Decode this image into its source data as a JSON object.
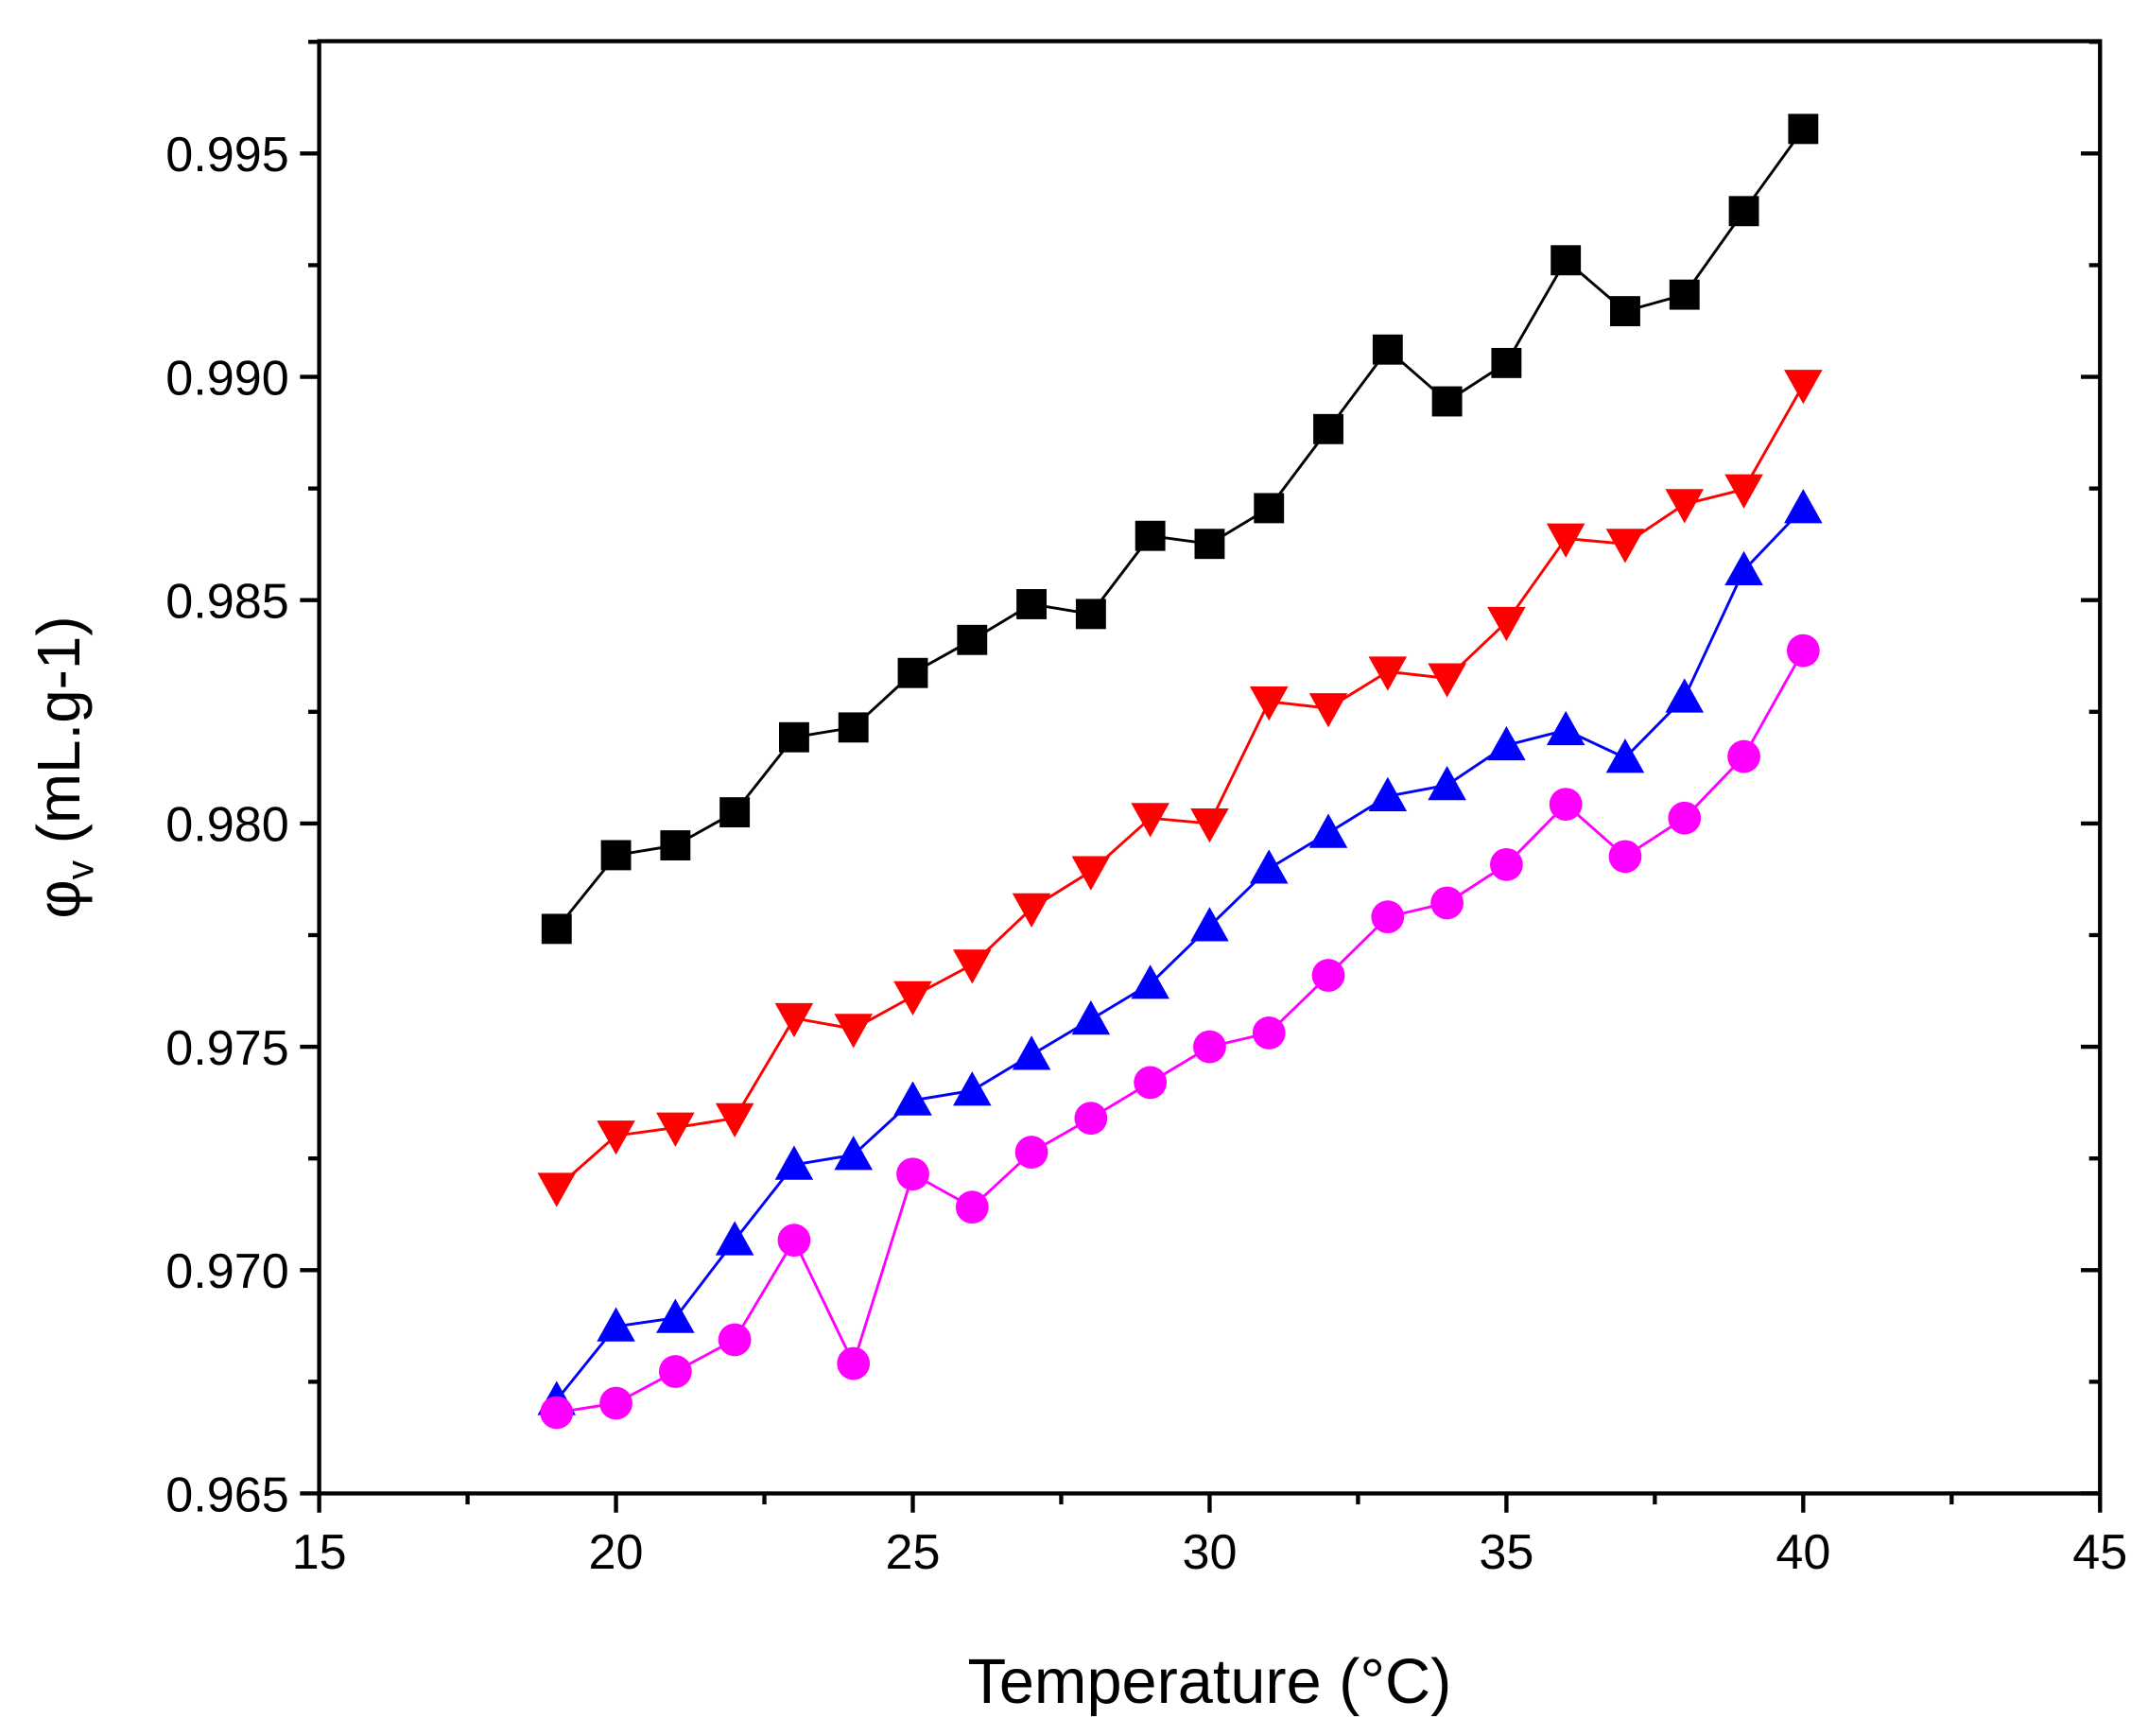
{
  "chart_data": {
    "type": "line",
    "title": "",
    "xlabel": "Temperature (°C)",
    "ylabel_main": "φ",
    "ylabel_sub": "v",
    "ylabel_unit": " (mL.g-1)",
    "xlim": [
      15,
      45
    ],
    "ylim": [
      0.965,
      0.997
    ],
    "xticks": [
      "15",
      "20",
      "25",
      "30",
      "35",
      "40",
      "45"
    ],
    "yticks": [
      "0.965",
      "0.970",
      "0.975",
      "0.980",
      "0.985",
      "0.990",
      "0.995"
    ],
    "grid": false,
    "legend": "none",
    "x": [
      19,
      20,
      21,
      22,
      23,
      24,
      25,
      26,
      27,
      28,
      29,
      30,
      31,
      32,
      33,
      34,
      35,
      36,
      37,
      38,
      39,
      40
    ],
    "series": [
      {
        "name": "series-black-squares",
        "color": "#000000",
        "marker": "square",
        "values": [
          0.97764,
          0.97929,
          0.97951,
          0.98025,
          0.98193,
          0.98215,
          0.98337,
          0.98411,
          0.98491,
          0.98469,
          0.98644,
          0.98626,
          0.98706,
          0.98883,
          0.99061,
          0.98945,
          0.99031,
          0.99261,
          0.99147,
          0.99184,
          0.99371,
          0.99555
        ]
      },
      {
        "name": "series-red-down-triangles",
        "color": "#ff0000",
        "marker": "triangle-down",
        "values": [
          0.97184,
          0.97301,
          0.97319,
          0.9734,
          0.97564,
          0.9754,
          0.97613,
          0.97684,
          0.9781,
          0.97893,
          0.98012,
          0.98,
          0.98273,
          0.98258,
          0.9834,
          0.98325,
          0.98451,
          0.98638,
          0.98626,
          0.98715,
          0.98748,
          0.98982
        ]
      },
      {
        "name": "series-blue-up-triangles",
        "color": "#0000ff",
        "marker": "triangle-up",
        "values": [
          0.96709,
          0.96874,
          0.96893,
          0.97067,
          0.97236,
          0.97258,
          0.9738,
          0.97402,
          0.97482,
          0.97561,
          0.97641,
          0.9777,
          0.97899,
          0.97979,
          0.98061,
          0.98086,
          0.98175,
          0.98209,
          0.98147,
          0.98282,
          0.98567,
          0.98706
        ]
      },
      {
        "name": "series-magenta-circles",
        "color": "#ff00ff",
        "marker": "circle",
        "values": [
          0.96681,
          0.96702,
          0.96773,
          0.96844,
          0.97067,
          0.96791,
          0.97215,
          0.97141,
          0.97264,
          0.9734,
          0.9742,
          0.975,
          0.97531,
          0.9766,
          0.97791,
          0.97822,
          0.97908,
          0.98043,
          0.97926,
          0.98012,
          0.9815,
          0.98387
        ]
      }
    ]
  }
}
